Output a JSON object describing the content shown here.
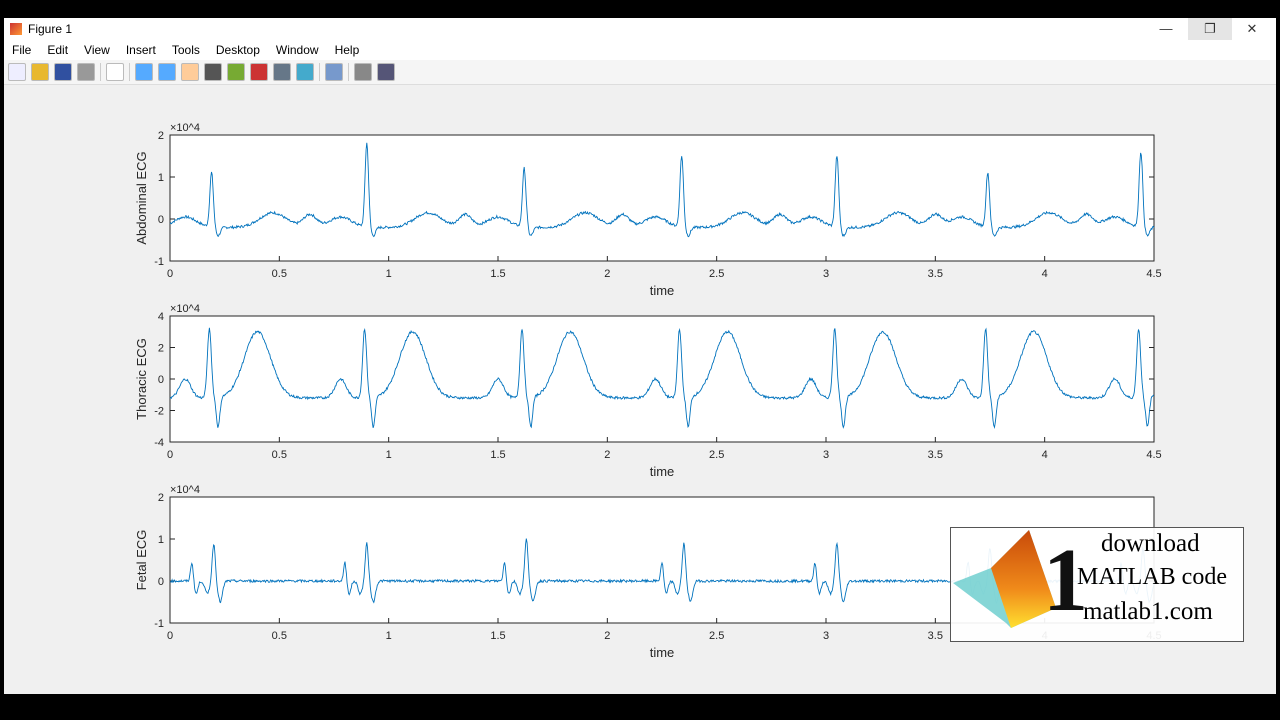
{
  "window": {
    "title": "Figure 1",
    "minimize": "—",
    "restore": "❐",
    "close": "✕"
  },
  "menu": [
    "File",
    "Edit",
    "View",
    "Insert",
    "Tools",
    "Desktop",
    "Window",
    "Help"
  ],
  "toolbar": [
    "new-file",
    "open",
    "save",
    "print",
    "pointer",
    "zoom-in",
    "zoom-out",
    "pan",
    "rotate-3d",
    "data-cursor",
    "brush",
    "link",
    "colorbar",
    "legend",
    "hide-plot-tools",
    "show-plot-tools"
  ],
  "line_color": "#0072bd",
  "watermark": {
    "line1": "download",
    "line2": "MATLAB code",
    "line3": "matlab1.com",
    "numeral": "1"
  },
  "chart_data": [
    {
      "type": "line",
      "ylabel": "Abdominal ECG",
      "xlabel": "time",
      "exponent": "×10^4",
      "exp_base": "×10",
      "exp_power": "4",
      "xlim": [
        0,
        4.5
      ],
      "ylim": [
        -1,
        2
      ],
      "xticks": [
        "0",
        "0.5",
        "1",
        "1.5",
        "2",
        "2.5",
        "3",
        "3.5",
        "4",
        "4.5"
      ],
      "yticks": [
        "-1",
        "0",
        "1",
        "2"
      ],
      "r_peaks_time": [
        0.19,
        0.9,
        1.62,
        2.34,
        3.05,
        3.74,
        4.44
      ],
      "r_peaks_value": [
        1.1,
        1.8,
        1.2,
        1.5,
        1.5,
        1.1,
        1.6
      ],
      "baseline": -0.2
    },
    {
      "type": "line",
      "ylabel": "Thoracic ECG",
      "xlabel": "time",
      "exponent": "×10^4",
      "exp_base": "×10",
      "exp_power": "4",
      "xlim": [
        0,
        4.5
      ],
      "ylim": [
        -4,
        4
      ],
      "xticks": [
        "0",
        "0.5",
        "1",
        "1.5",
        "2",
        "2.5",
        "3",
        "3.5",
        "4",
        "4.5"
      ],
      "yticks": [
        "-4",
        "-2",
        "0",
        "2",
        "4"
      ],
      "r_peaks_time": [
        0.18,
        0.89,
        1.61,
        2.33,
        3.04,
        3.73,
        4.43
      ],
      "r_peaks_value": [
        3.2,
        3.2,
        3.2,
        3.2,
        3.2,
        3.2,
        3.2
      ],
      "s_trough_value": -3.1,
      "t_wave_value": 3.0,
      "baseline": -1.2
    },
    {
      "type": "line",
      "ylabel": "Fetal ECG",
      "xlabel": "time",
      "exponent": "×10^4",
      "exp_base": "×10",
      "exp_power": "4",
      "xlim": [
        0,
        4.5
      ],
      "ylim": [
        -1,
        2
      ],
      "xticks": [
        "0",
        "0.5",
        "1",
        "1.5",
        "2",
        "2.5",
        "3",
        "3.5",
        "4",
        "4.5"
      ],
      "yticks": [
        "-1",
        "0",
        "1",
        "2"
      ],
      "r_peaks_time": [
        0.2,
        0.9,
        1.63,
        2.35,
        3.05,
        3.75,
        4.45
      ],
      "r_peaks_value": [
        0.9,
        0.9,
        1.0,
        0.9,
        0.9,
        0.8,
        0.8
      ],
      "baseline": 0
    }
  ]
}
